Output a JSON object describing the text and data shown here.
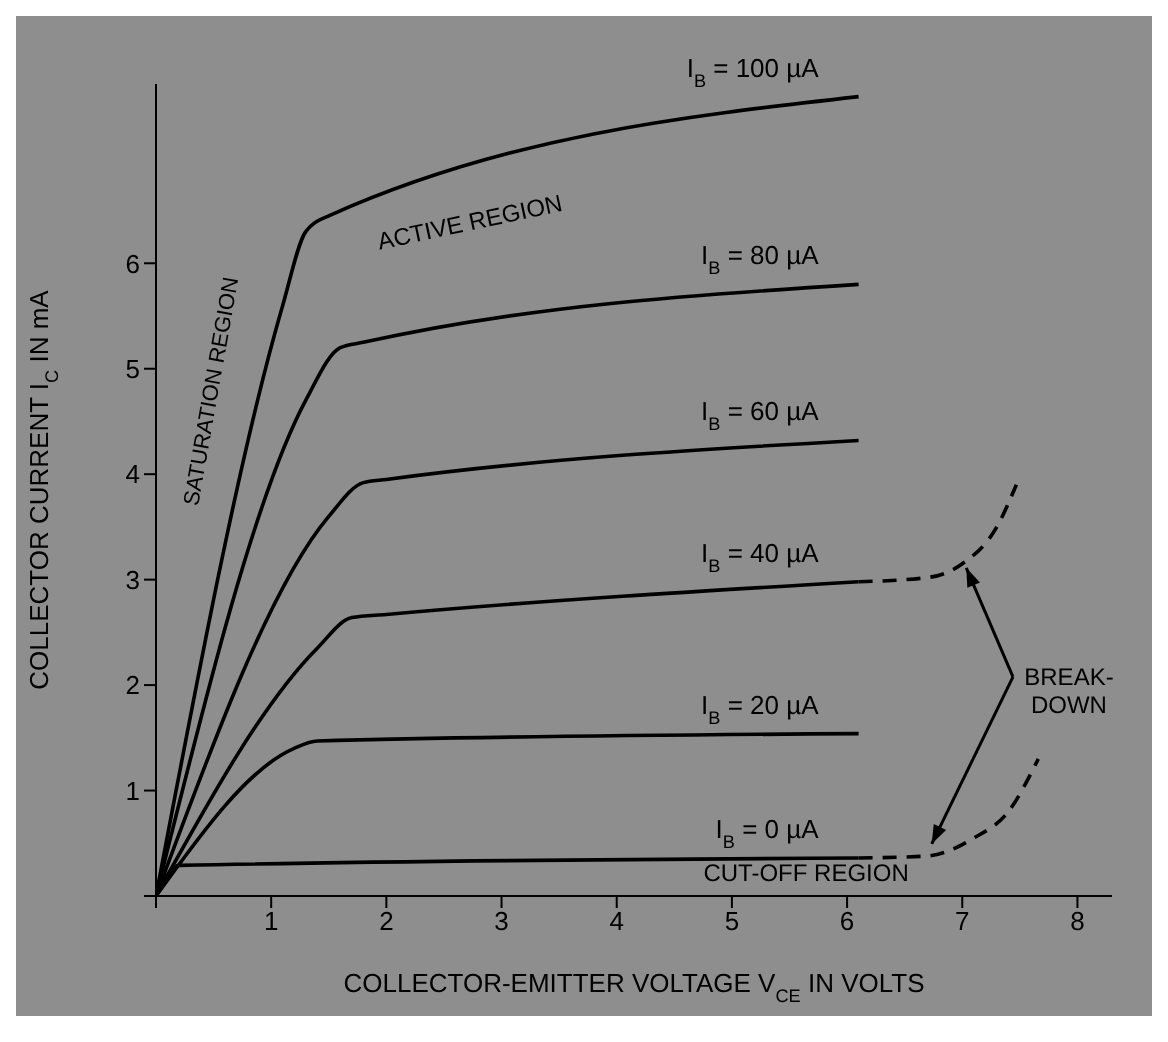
{
  "chart_data": {
    "type": "line",
    "xlabel": "COLLECTOR-EMITTER VOLTAGE V$_{CE}$ IN VOLTS",
    "ylabel": "COLLECTOR CURRENT I$_{C}$ IN mA",
    "xlim": [
      0,
      8.3
    ],
    "ylim": [
      0,
      7.7
    ],
    "xticks": [
      {
        "value": 0,
        "label": null
      },
      1,
      2,
      3,
      4,
      5,
      6,
      7,
      8
    ],
    "yticks": [
      {
        "value": 0,
        "label": null
      },
      1,
      2,
      3,
      4,
      5,
      6
    ],
    "marker": "none",
    "line_style": "solid",
    "series": [
      {
        "name": "I$_{B}$ = 100 µA",
        "color": "#000000",
        "x": [
          0,
          1.1,
          1.3,
          1.5,
          6.1
        ],
        "values": [
          0,
          5.6,
          6.3,
          6.45,
          7.58
        ]
      },
      {
        "name": "I$_{B}$ = 80 µA",
        "color": "#000000",
        "x": [
          0,
          1.3,
          1.6,
          1.8,
          6.1
        ],
        "values": [
          0,
          4.7,
          5.2,
          5.25,
          5.8
        ]
      },
      {
        "name": "I$_{B}$ = 60 µA",
        "color": "#000000",
        "x": [
          0,
          1.5,
          1.8,
          2.0,
          6.1
        ],
        "values": [
          0,
          3.6,
          3.92,
          3.95,
          4.32
        ]
      },
      {
        "name": "I$_{B}$ = 40 µA",
        "color": "#000000",
        "x": [
          0,
          1.4,
          1.7,
          2.0,
          6.1
        ],
        "values": [
          0,
          2.35,
          2.64,
          2.67,
          2.98
        ]
      },
      {
        "name": "I$_{B}$ = 20 µA",
        "color": "#000000",
        "x": [
          0,
          1.2,
          1.4,
          6.1
        ],
        "values": [
          0,
          1.4,
          1.47,
          1.54
        ]
      },
      {
        "name": "I$_{B}$ = 0 µA",
        "color": "#000000",
        "x": [
          0,
          0.2,
          6.1
        ],
        "values": [
          0,
          0.29,
          0.36
        ]
      },
      {
        "color": "#000000",
        "line_style": "dashed",
        "x": [
          6.1,
          6.7,
          7.0,
          7.3,
          7.47
        ],
        "values": [
          2.98,
          3.02,
          3.15,
          3.5,
          3.9
        ]
      },
      {
        "color": "#000000",
        "line_style": "dashed",
        "x": [
          6.1,
          6.7,
          7.1,
          7.4,
          7.66
        ],
        "values": [
          0.36,
          0.38,
          0.55,
          0.8,
          1.3
        ]
      }
    ],
    "annotations": [
      "ACTIVE REGION",
      "SATURATION REGION",
      "CUT-OFF REGION",
      {
        "text": "BREAK-DOWN",
        "x": 7.0,
        "y": 3.15
      }
    ]
  }
}
